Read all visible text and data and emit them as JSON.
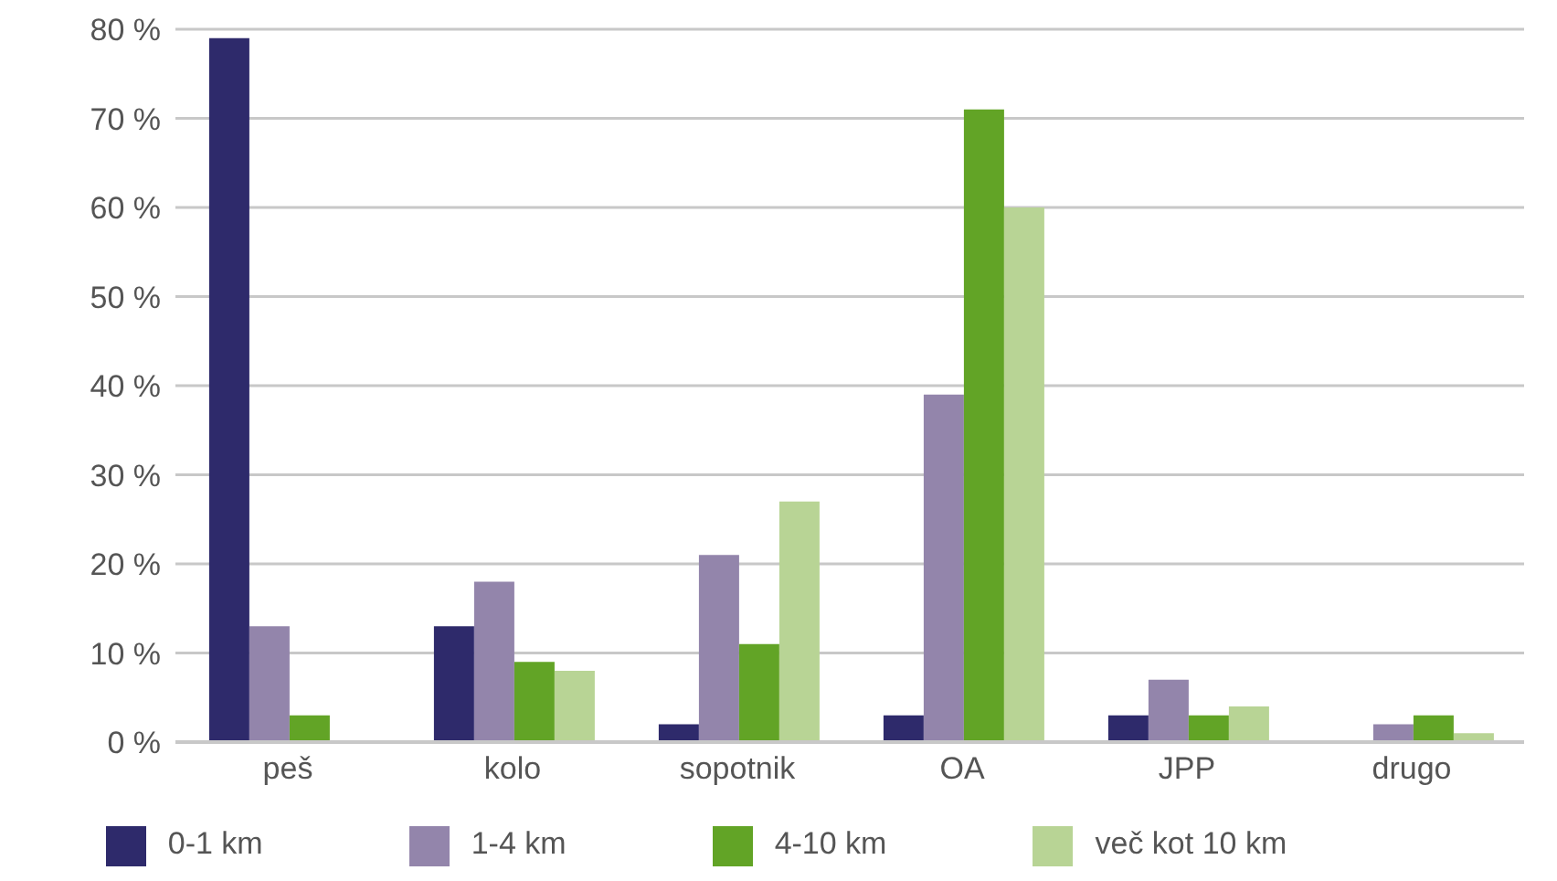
{
  "chart_data": {
    "type": "bar",
    "categories": [
      "peš",
      "kolo",
      "sopotnik",
      "OA",
      "JPP",
      "drugo"
    ],
    "series": [
      {
        "name": "0-1 km",
        "color": "#2e2a6b",
        "values": [
          79,
          13,
          2,
          3,
          3,
          0
        ]
      },
      {
        "name": "1-4 km",
        "color": "#9385ab",
        "values": [
          13,
          18,
          21,
          39,
          7,
          2
        ]
      },
      {
        "name": "4-10 km",
        "color": "#62a426",
        "values": [
          3,
          9,
          11,
          71,
          3,
          3
        ]
      },
      {
        "name": "več kot 10 km",
        "color": "#b8d495",
        "values": [
          0,
          8,
          27,
          60,
          4,
          1
        ]
      }
    ],
    "ylim": [
      0,
      80
    ],
    "yticks": [
      {
        "value": 0,
        "label": "0 %"
      },
      {
        "value": 10,
        "label": "10 %"
      },
      {
        "value": 20,
        "label": "20 %"
      },
      {
        "value": 30,
        "label": "30 %"
      },
      {
        "value": 40,
        "label": "40 %"
      },
      {
        "value": 50,
        "label": "50 %"
      },
      {
        "value": 60,
        "label": "60 %"
      },
      {
        "value": 70,
        "label": "70 %"
      },
      {
        "value": 80,
        "label": "80 %"
      }
    ],
    "grid": "y",
    "legend": "bottom"
  }
}
